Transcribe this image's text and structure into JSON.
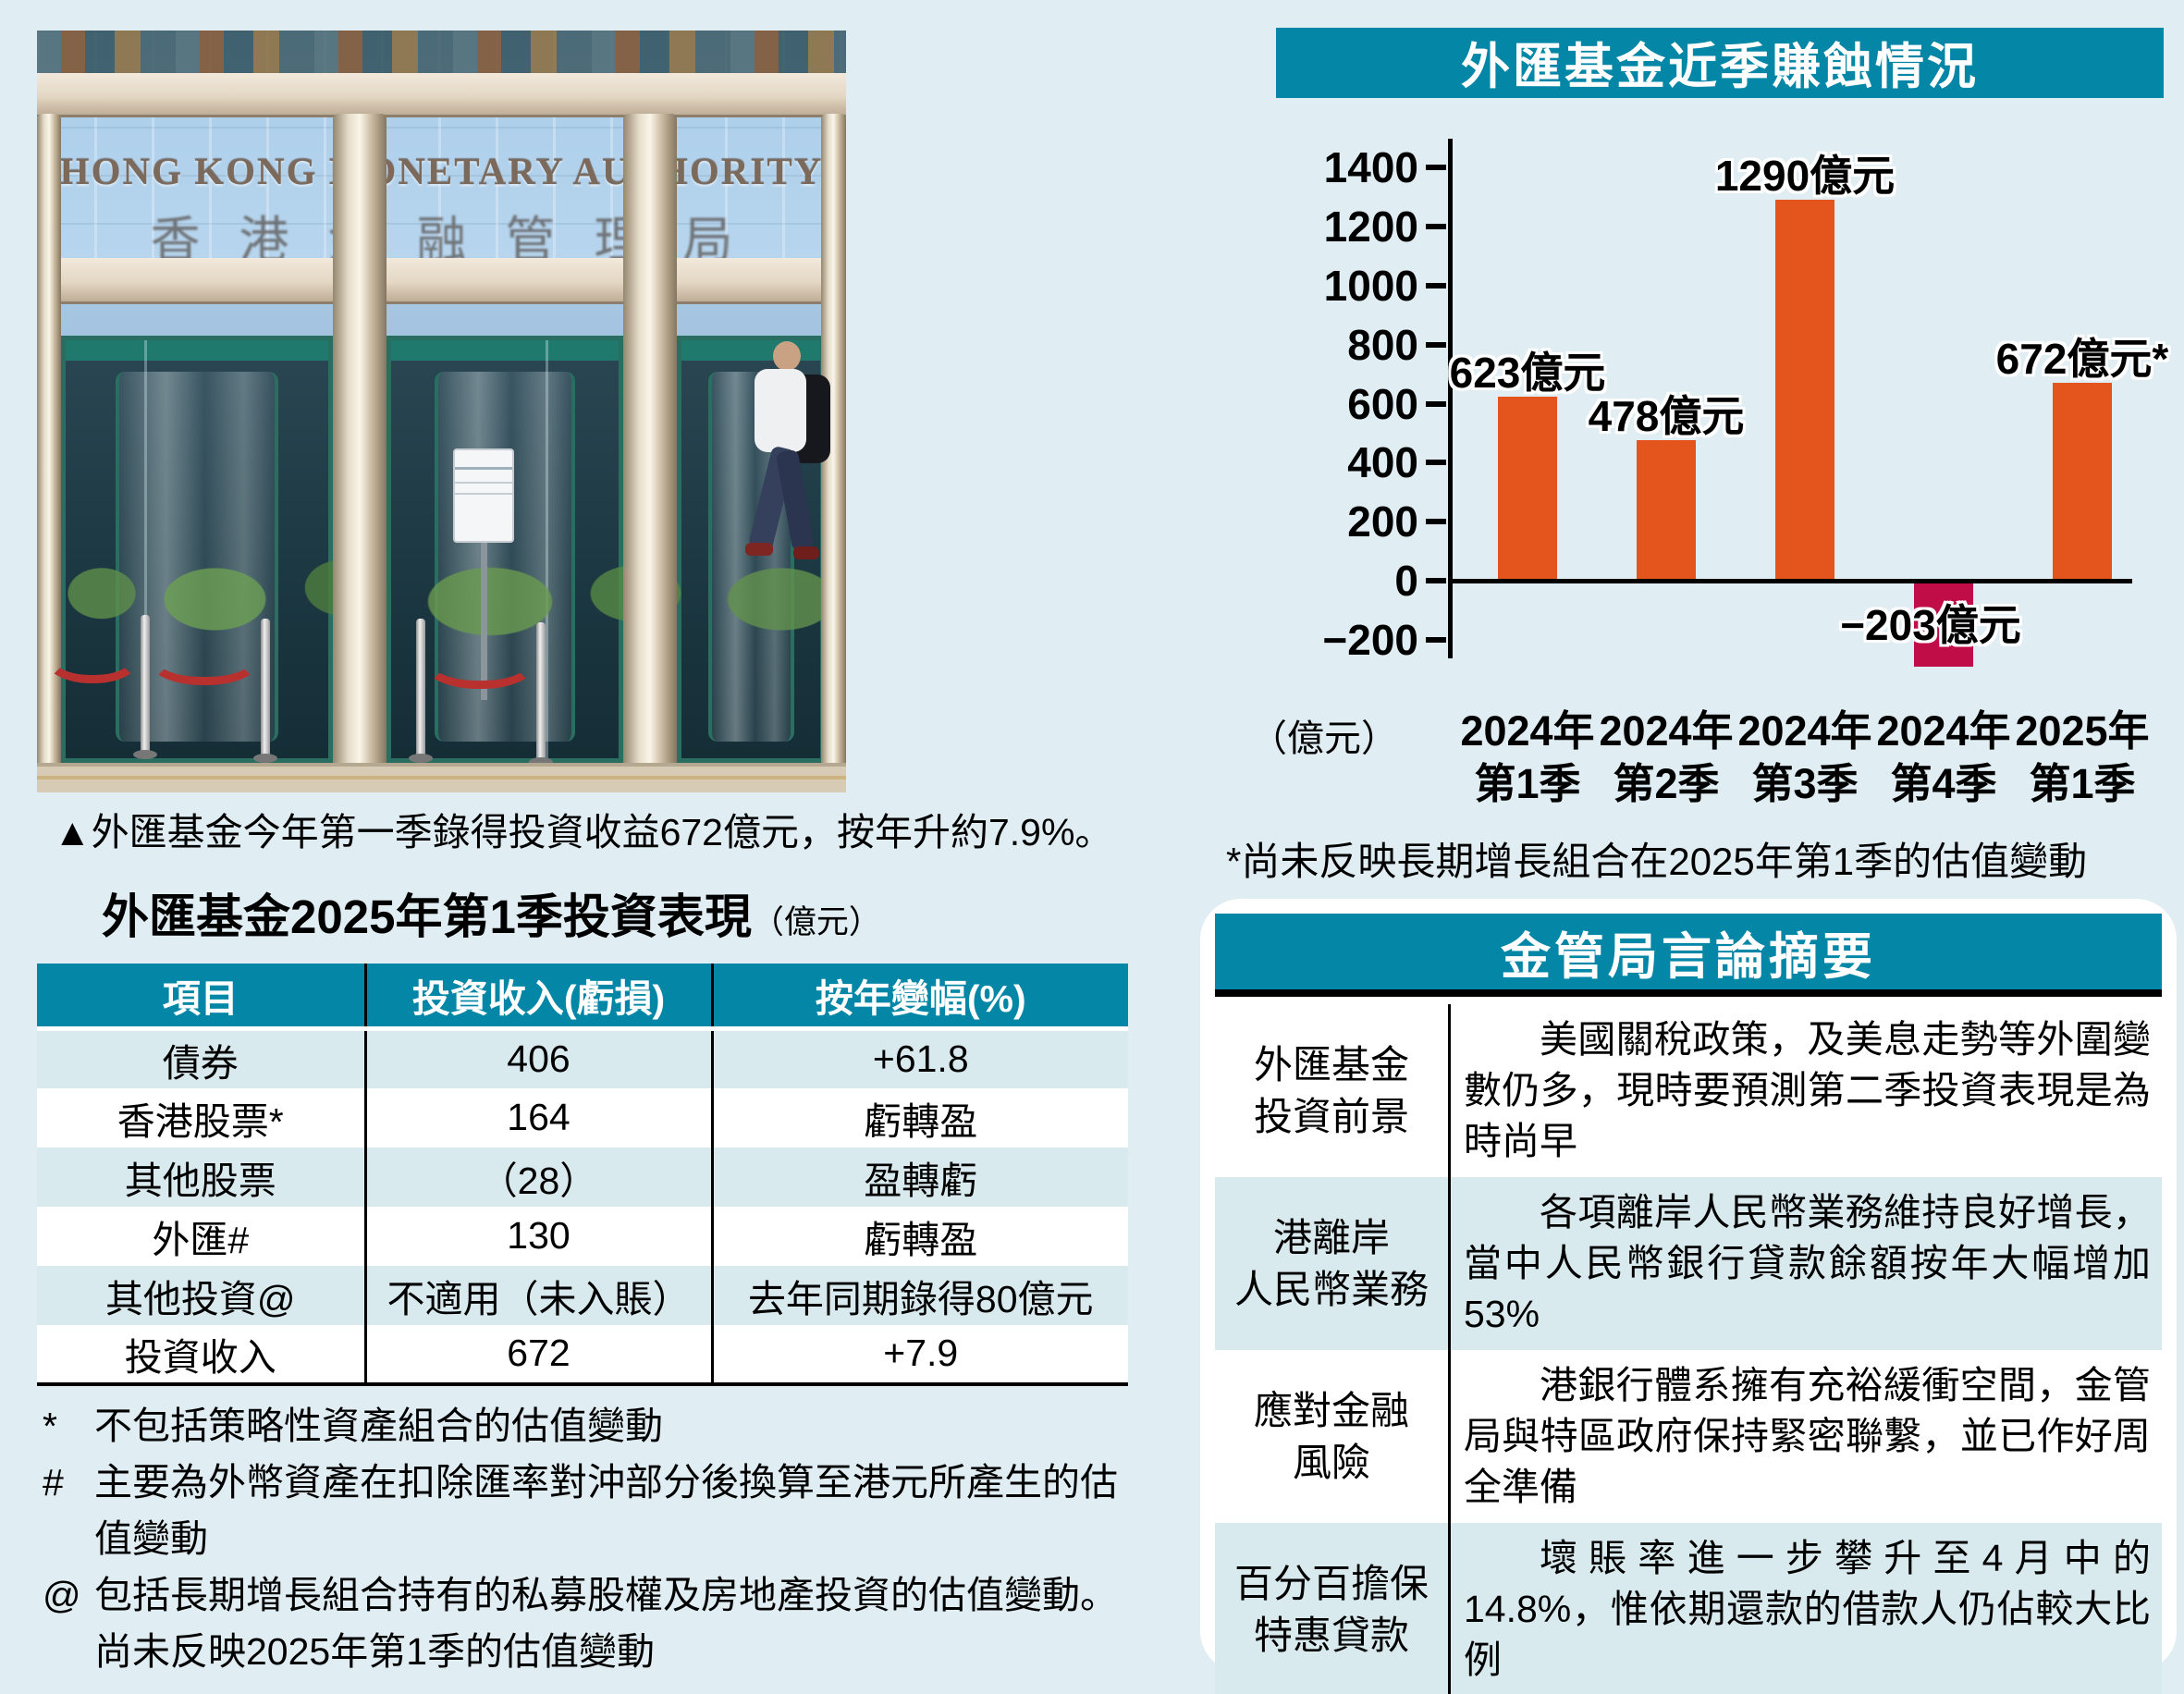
{
  "colors": {
    "page_bg": "#e0eef3",
    "teal": "#0486a7",
    "orange": "#e4551e",
    "crimson": "#c00d48",
    "row_blue": "#d9eaef"
  },
  "photo": {
    "sign_en": "HONG KONG MONETARY AUTHORITY",
    "sign_zh": "香港金融管理局",
    "caption": "▲外匯基金今年第一季錄得投資收益672億元，按年升約7.9%。"
  },
  "chart": {
    "title": "外匯基金近季賺蝕情況",
    "footnote": "*尚未反映長期增長組合在2025年第1季的估值變動"
  },
  "chart_data": {
    "type": "bar",
    "title": "外匯基金近季賺蝕情況",
    "unit": "（億元）",
    "categories": [
      [
        "2024年",
        "第1季"
      ],
      [
        "2024年",
        "第2季"
      ],
      [
        "2024年",
        "第3季"
      ],
      [
        "2024年",
        "第4季"
      ],
      [
        "2025年",
        "第1季"
      ]
    ],
    "values": [
      623,
      478,
      1290,
      -203,
      672
    ],
    "value_labels": [
      "623億元",
      "478億元",
      "1290億元",
      "−203億元",
      "672億元*"
    ],
    "yticks": [
      1400,
      1200,
      1000,
      800,
      600,
      400,
      200,
      0,
      -200
    ],
    "ytick_labels": [
      "1400",
      "1200",
      "1000",
      "800",
      "600",
      "400",
      "200",
      "0",
      "−200"
    ],
    "ylim": [
      -300,
      1450
    ],
    "grid": false,
    "legend_position": "none",
    "bar_color": "#e4551e",
    "negative_bar_color": "#c00d48"
  },
  "left_table": {
    "title": "外匯基金2025年第1季投資表現",
    "title_unit": "（億元）",
    "headers": [
      "項目",
      "投資收入(虧損)",
      "按年變幅(%)"
    ],
    "rows": [
      [
        "債券",
        "406",
        "+61.8"
      ],
      [
        "香港股票*",
        "164",
        "虧轉盈"
      ],
      [
        "其他股票",
        "（28）",
        "盈轉虧"
      ],
      [
        "外匯#",
        "130",
        "虧轉盈"
      ],
      [
        "其他投資@",
        "不適用（未入賬）",
        "去年同期錄得80億元"
      ],
      [
        "投資收入",
        "672",
        "+7.9"
      ]
    ],
    "footnotes": [
      {
        "marker": "*",
        "text": "不包括策略性資產組合的估值變動"
      },
      {
        "marker": "#",
        "text": "主要為外幣資產在扣除匯率對沖部分後換算至港元所產生的估值變動"
      },
      {
        "marker": "@",
        "text": "包括長期增長組合持有的私募股權及房地產投資的估值變動。尚未反映2025年第1季的估值變動"
      }
    ]
  },
  "right_panel": {
    "title": "金管局言論摘要",
    "rows": [
      {
        "label": [
          "外匯基金",
          "投資前景"
        ],
        "text": "美國關稅政策，及美息走勢等外圍變數仍多，現時要預測第二季投資表現是為時尚早"
      },
      {
        "label": [
          "港離岸",
          "人民幣業務"
        ],
        "text": "各項離岸人民幣業務維持良好增長，當中人民幣銀行貸款餘額按年大幅增加53%"
      },
      {
        "label": [
          "應對金融",
          "風險"
        ],
        "text": "港銀行體系擁有充裕緩衝空間，金管局與特區政府保持緊密聯繫，並已作好周全準備"
      },
      {
        "label": [
          "百分百擔保",
          "特惠貸款"
        ],
        "text": "壞賬率進一步攀升至4月中的14.8%，惟依期還款的借款人仍佔較大比例"
      }
    ]
  }
}
